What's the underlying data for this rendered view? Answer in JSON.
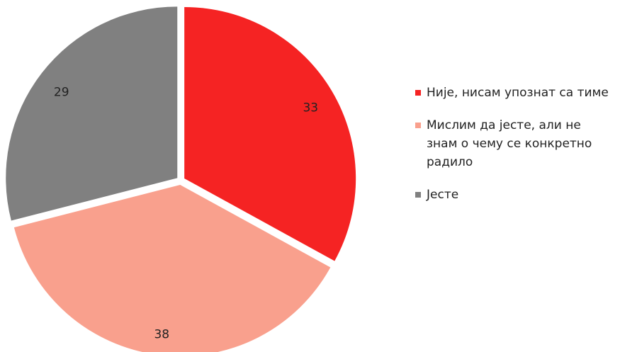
{
  "chart_data": {
    "type": "pie",
    "categories": [
      "Није, нисам упознат са тиме",
      "Мислим да јесте, али не знам о чему се конкретно радило",
      "Јесте"
    ],
    "values": [
      33,
      38,
      29
    ],
    "colors": [
      "#f52323",
      "#f9a08d",
      "#808080"
    ],
    "legend": "right"
  }
}
